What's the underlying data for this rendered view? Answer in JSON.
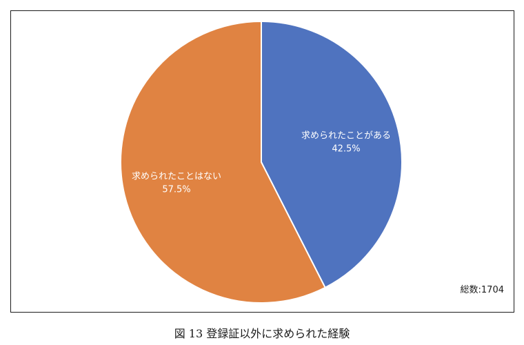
{
  "chart_data": {
    "type": "pie",
    "categories": [
      "求められたことがある",
      "求められたことはない"
    ],
    "values": [
      42.5,
      57.5
    ],
    "value_labels": [
      "42.5%",
      "57.5%"
    ],
    "colors": [
      "#4f73bf",
      "#e08342"
    ],
    "slice_border_color": "#ffffff",
    "label_color": "#ffffff",
    "start_angle": "12 o'clock",
    "direction": "clockwise",
    "legend": "none"
  },
  "total_note": "総数:1704",
  "caption": "図 13 登録証以外に求められた経験"
}
